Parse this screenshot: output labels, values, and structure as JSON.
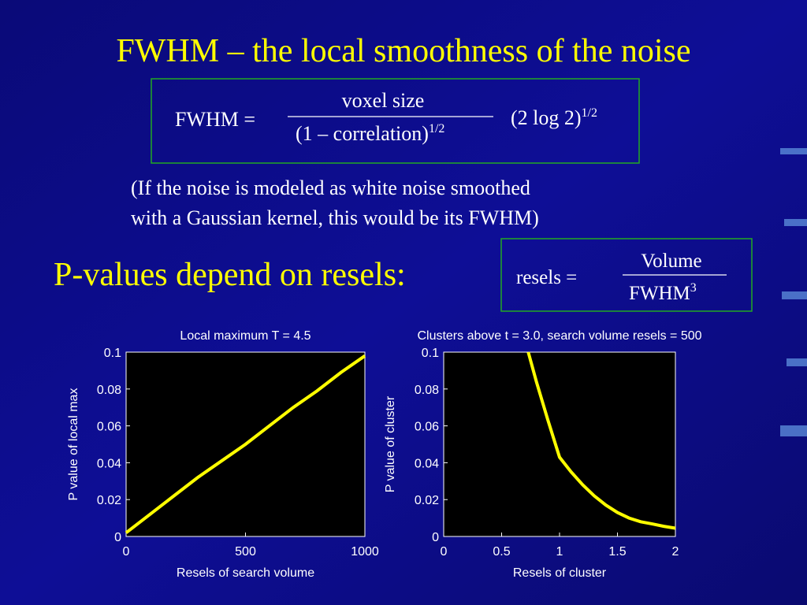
{
  "slide": {
    "title": "FWHM – the local smoothness of the noise",
    "formula": {
      "lhs": "FWHM =",
      "numerator": "voxel size",
      "denominator": "(1 – correlation)",
      "denominator_exp": "1/2",
      "factor": "(2 log 2)",
      "factor_exp": "1/2"
    },
    "note": [
      "(If the noise is modeled as white noise smoothed",
      "with a Gaussian kernel, this would be its FWHM)"
    ],
    "subheading": "P-values depend on resels:",
    "resels": {
      "lhs": "resels =",
      "numerator": "Volume",
      "denominator": "FWHM",
      "denominator_exp": "3"
    }
  },
  "chart_data": [
    {
      "type": "line",
      "title": "Local maximum T = 4.5",
      "x_label": "Resels of search volume",
      "y_label": "P value of local max",
      "x": [
        0,
        100,
        200,
        300,
        400,
        500,
        600,
        700,
        800,
        900,
        1000
      ],
      "values": [
        0.002,
        0.012,
        0.022,
        0.032,
        0.041,
        0.05,
        0.06,
        0.07,
        0.079,
        0.089,
        0.098
      ],
      "color": "#ffff00",
      "xlim": [
        0,
        1000
      ],
      "ylim": [
        0,
        0.1
      ],
      "xticks": [
        0,
        500,
        1000
      ],
      "yticks": [
        0,
        0.02,
        0.04,
        0.06,
        0.08,
        0.1
      ]
    },
    {
      "type": "line",
      "title": "Clusters above t = 3.0, search volume resels = 500",
      "x_label": "Resels of cluster",
      "y_label": "P value of cluster",
      "x": [
        0.73,
        0.8,
        0.9,
        1.0,
        1.1,
        1.2,
        1.3,
        1.4,
        1.5,
        1.6,
        1.7,
        1.8,
        1.9,
        2.0
      ],
      "values": [
        0.1,
        0.084,
        0.063,
        0.043,
        0.035,
        0.028,
        0.022,
        0.017,
        0.013,
        0.01,
        0.008,
        0.0068,
        0.0055,
        0.0045
      ],
      "color": "#ffff00",
      "xlim": [
        0,
        2
      ],
      "ylim": [
        0,
        0.1
      ],
      "xticks": [
        0,
        0.5,
        1,
        1.5,
        2
      ],
      "yticks": [
        0,
        0.02,
        0.04,
        0.06,
        0.08,
        0.1
      ]
    }
  ]
}
